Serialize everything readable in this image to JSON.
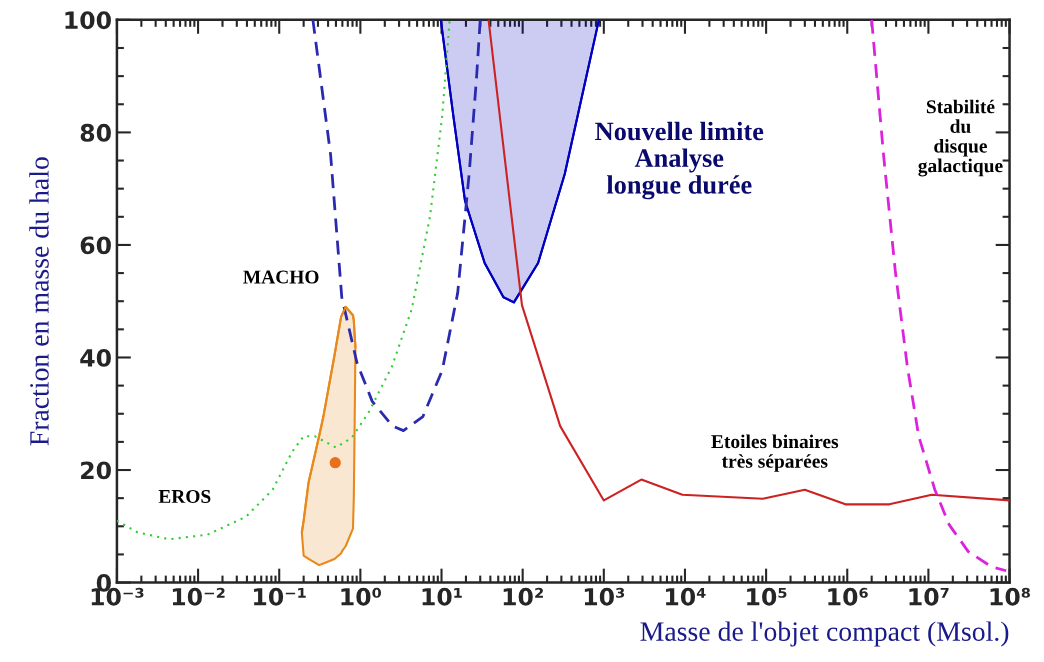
{
  "chart_data": {
    "type": "line",
    "xlabel": "Masse de l'objet compact (Msol.)",
    "ylabel": "Fraction en masse du halo",
    "log": "x",
    "xlim": [
      0.001,
      100000000
    ],
    "ylim": [
      0,
      100
    ],
    "xticks": [
      {
        "value": 0.001,
        "label": "10⁻³"
      },
      {
        "value": 0.01,
        "label": "10⁻²"
      },
      {
        "value": 0.1,
        "label": "10⁻¹"
      },
      {
        "value": 1,
        "label": "10⁰"
      },
      {
        "value": 10,
        "label": "10¹"
      },
      {
        "value": 100,
        "label": "10²"
      },
      {
        "value": 1000,
        "label": "10³"
      },
      {
        "value": 10000,
        "label": "10⁴"
      },
      {
        "value": 100000,
        "label": "10⁵"
      },
      {
        "value": 1000000,
        "label": "10⁶"
      },
      {
        "value": 10000000,
        "label": "10⁷"
      },
      {
        "value": 100000000,
        "label": "10⁸"
      }
    ],
    "yticks": [
      0,
      20,
      40,
      60,
      80,
      100
    ],
    "grid": false,
    "legend": false,
    "series": [
      {
        "color": "#0000c0",
        "line_style": "solid",
        "x": [
          9.8,
          14,
          19.5,
          34,
          58,
          78,
          155,
          330,
          575,
          870
        ],
        "values": [
          100,
          82.9,
          67.8,
          56.8,
          50.7,
          49.8,
          56.8,
          72.6,
          88.3,
          100
        ],
        "lower": [
          100,
          82.9,
          67.8,
          56.8,
          50.7,
          49.8,
          56.8,
          72.6,
          88.3,
          100
        ],
        "upper": [
          100,
          100,
          100,
          100,
          100,
          100,
          100,
          100,
          100,
          100
        ]
      },
      {
        "color": "#2a2ab0",
        "line_style": "dashed",
        "x": [
          0.26,
          0.43,
          0.59,
          0.91,
          1.4,
          2.5,
          3.4,
          5.9,
          10.2,
          15.8,
          21.9,
          27,
          30
        ],
        "values": [
          100,
          76,
          50.7,
          39,
          32.2,
          27.8,
          27,
          29.5,
          37.7,
          51.4,
          72.6,
          89.7,
          100
        ]
      },
      {
        "color": "#33cc33",
        "line_style": "dotted",
        "x": [
          0.001,
          0.0018,
          0.0044,
          0.013,
          0.039,
          0.083,
          0.145,
          0.2,
          0.275,
          0.5,
          0.78,
          1.26,
          2.45,
          4.3,
          7.2,
          10.2,
          12.6
        ],
        "values": [
          11,
          8.9,
          7.7,
          8.5,
          11.7,
          16.5,
          23.3,
          26,
          26,
          24,
          25.7,
          30.2,
          38.4,
          48.6,
          65,
          82.9,
          100
        ]
      },
      {
        "color": "#e8891c",
        "line_style": "solid",
        "x": [
          0.19,
          0.2,
          0.23,
          0.31,
          0.35,
          0.48,
          0.58,
          0.59,
          0.66,
          0.81,
          0.83,
          0.85,
          0.87
        ],
        "values": [
          8.9,
          11,
          17.8,
          26,
          29.5,
          40.4,
          47.3,
          47.5,
          49,
          47.5,
          46.6,
          44,
          41.8
        ],
        "lower": [
          8.9,
          4.8,
          4.2,
          3.1,
          3.4,
          4.2,
          5.2,
          5.5,
          6.5,
          9.6,
          15,
          28.1,
          41.8
        ],
        "upper": [
          8.9,
          11,
          17.8,
          26,
          29.5,
          40.4,
          47.3,
          47.5,
          49,
          47.5,
          46.6,
          44,
          41.8
        ]
      },
      {
        "type": "scatter",
        "color": "#e8701c",
        "x": [
          0.49
        ],
        "values": [
          21.3
        ]
      },
      {
        "color": "#cc2222",
        "line_style": "solid",
        "x": [
          38,
          98,
          290,
          1000,
          2900,
          9300,
          91000,
          300000,
          950000,
          3300000,
          11000000,
          100000000
        ],
        "values": [
          100,
          49.3,
          27.8,
          14.6,
          18.3,
          15.6,
          14.9,
          16.5,
          13.9,
          13.9,
          15.6,
          14.6
        ]
      },
      {
        "color": "#dd22dd",
        "line_style": "dashed",
        "x": [
          2000000,
          2800000,
          3900000,
          5500000,
          7600000,
          12000000,
          18000000,
          31000000,
          60000000,
          91000000
        ],
        "values": [
          100,
          76,
          55.5,
          38.4,
          26,
          16.5,
          10.3,
          5.5,
          2.8,
          2.1
        ]
      }
    ],
    "annotations": [
      "EROS",
      "MACHO",
      "Nouvelle limite\nAnalyse\nlongue durée",
      "Etoiles binaires\ntrès séparées",
      "Stabilité\ndu\ndisque\ngalactique"
    ]
  }
}
